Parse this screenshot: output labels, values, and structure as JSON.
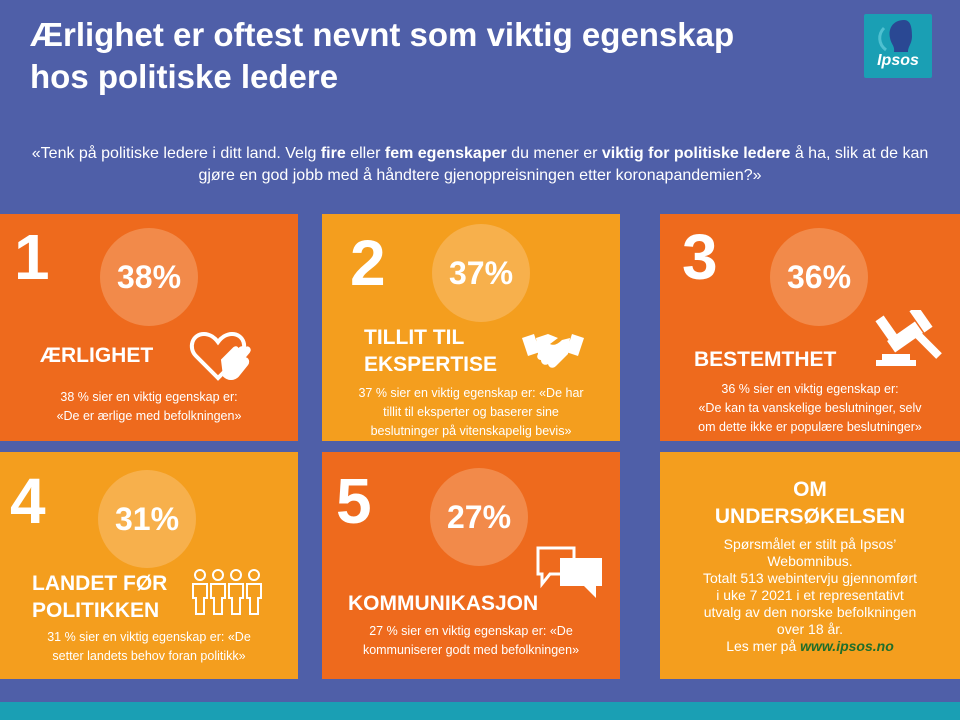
{
  "title_line1": "Ærlighet er oftest nevnt som viktig egenskap",
  "title_line2": "hos politiske ledere",
  "logo_text": "Ipsos",
  "question": {
    "p1": "«Tenk på politiske ledere i ditt land. Velg ",
    "b1": "fire",
    "p2": " eller ",
    "b2": "fem egenskaper",
    "p3": " du mener er ",
    "b3": "viktig for politiske ledere",
    "p4": " å ha, slik at de kan gjøre en god jobb med å håndtere gjenoppreisningen etter koronapandemien?»"
  },
  "cards": [
    {
      "rank": "1",
      "percent": "38%",
      "label1": "ÆRLIGHET",
      "label2": "",
      "desc1": "38 % sier en viktig egenskap er:",
      "desc2": "«De er ærlige med befolkningen»",
      "desc3": "",
      "icon": "heart-hand-icon",
      "bg": "#ee6a1d"
    },
    {
      "rank": "2",
      "percent": "37%",
      "label1": "TILLIT TIL",
      "label2": "EKSPERTISE",
      "desc1": "37 % sier en viktig egenskap er: «De har",
      "desc2": "tillit til eksperter og baserer sine",
      "desc3": "beslutninger på vitenskapelig bevis»",
      "icon": "handshake-icon",
      "bg": "#f49e1e"
    },
    {
      "rank": "3",
      "percent": "36%",
      "label1": "BESTEMTHET",
      "label2": "",
      "desc1": "36 % sier en viktig egenskap er:",
      "desc2": "«De kan ta vanskelige beslutninger, selv",
      "desc3": "om dette ikke er populære beslutninger»",
      "icon": "gavel-icon",
      "bg": "#ee6a1d"
    },
    {
      "rank": "4",
      "percent": "31%",
      "label1": "LANDET FØR",
      "label2": "POLITIKKEN",
      "desc1": "31 % sier en viktig egenskap er: «De",
      "desc2": "setter landets behov foran politikk»",
      "desc3": "",
      "icon": "people-icon",
      "bg": "#f49e1e"
    },
    {
      "rank": "5",
      "percent": "27%",
      "label1": "KOMMUNIKASJON",
      "label2": "",
      "desc1": "27 % sier en viktig egenskap er: «De",
      "desc2": "kommuniserer godt med befolkningen»",
      "desc3": "",
      "icon": "chat-bubbles-icon",
      "bg": "#ee6a1d"
    }
  ],
  "about": {
    "title1": "OM",
    "title2": "UNDERSØKELSEN",
    "line1": "Spørsmålet er stilt på Ipsos’",
    "line2": "Webomnibus.",
    "line3": "Totalt 513 webintervju gjennomført",
    "line4": "i uke 7 2021 i et representativt",
    "line5": "utvalg av den norske befolkningen",
    "line6": "over 18 år.",
    "more_prefix": "Les mer på ",
    "more_link": "www.ipsos.no",
    "bg": "#f49e1e"
  },
  "colors": {
    "background": "#4f5fa8",
    "orange": "#ee6a1d",
    "yellow": "#f49e1e",
    "teal": "#1a9fb4"
  }
}
